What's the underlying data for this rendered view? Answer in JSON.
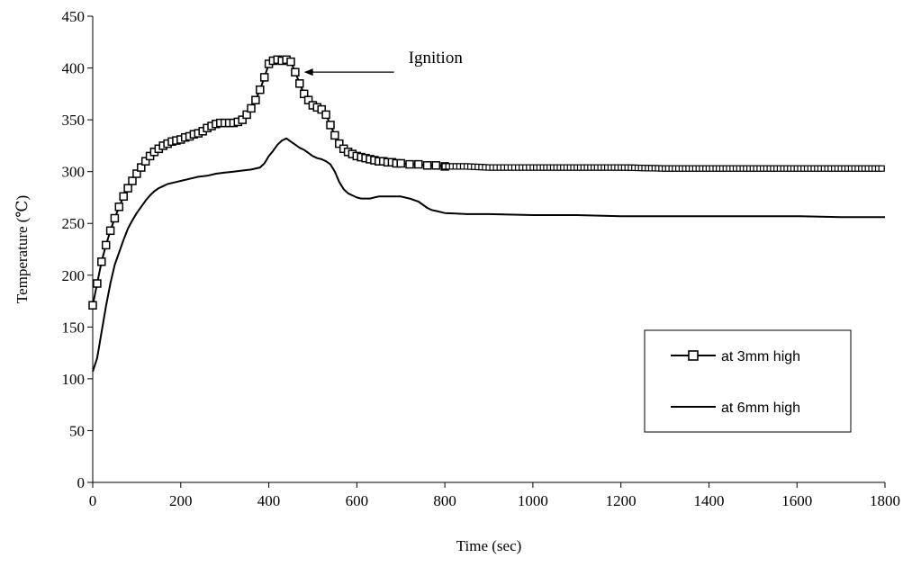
{
  "chart_data": {
    "type": "line",
    "title": "",
    "xlabel": "Time (sec)",
    "ylabel": "Temperature (℃)",
    "xlim": [
      0,
      1800
    ],
    "ylim": [
      0,
      450
    ],
    "xticks": [
      0,
      200,
      400,
      600,
      800,
      1000,
      1200,
      1400,
      1600,
      1800
    ],
    "yticks": [
      0,
      50,
      100,
      150,
      200,
      250,
      300,
      350,
      400,
      450
    ],
    "grid": false,
    "legend_position": "bottom-right",
    "annotation": {
      "text": "Ignition",
      "x": 480,
      "y": 396
    },
    "series": [
      {
        "name": "at 3mm high",
        "color": "#000000",
        "marker": "square",
        "x": [
          0,
          10,
          20,
          30,
          40,
          50,
          60,
          70,
          80,
          90,
          100,
          110,
          120,
          130,
          140,
          150,
          160,
          170,
          180,
          190,
          200,
          210,
          220,
          230,
          240,
          250,
          260,
          270,
          280,
          290,
          300,
          310,
          320,
          330,
          340,
          350,
          360,
          370,
          380,
          390,
          400,
          410,
          420,
          430,
          440,
          450,
          460,
          470,
          480,
          490,
          500,
          510,
          520,
          530,
          540,
          550,
          560,
          570,
          580,
          590,
          600,
          610,
          620,
          630,
          640,
          650,
          660,
          670,
          680,
          690,
          700,
          720,
          740,
          760,
          780,
          800,
          850,
          900,
          950,
          1000,
          1100,
          1200,
          1300,
          1400,
          1500,
          1600,
          1700,
          1800
        ],
        "y": [
          171,
          192,
          213,
          229,
          243,
          255,
          266,
          276,
          284,
          291,
          298,
          304,
          310,
          315,
          319,
          322,
          325,
          327,
          329,
          330,
          331,
          333,
          334,
          336,
          337,
          339,
          342,
          344,
          346,
          347,
          347,
          347,
          347,
          348,
          350,
          355,
          361,
          369,
          379,
          391,
          404,
          407,
          408,
          407,
          408,
          406,
          396,
          385,
          375,
          369,
          364,
          362,
          360,
          355,
          345,
          335,
          327,
          322,
          319,
          317,
          315,
          314,
          313,
          312,
          311,
          310,
          310,
          309,
          309,
          308,
          308,
          307,
          307,
          306,
          306,
          305,
          305,
          304,
          304,
          304,
          304,
          304,
          303,
          303,
          303,
          303,
          303,
          303
        ]
      },
      {
        "name": "at 6mm high",
        "color": "#000000",
        "marker": "none",
        "x": [
          0,
          10,
          20,
          30,
          40,
          50,
          60,
          70,
          80,
          90,
          100,
          110,
          120,
          130,
          140,
          150,
          160,
          170,
          180,
          190,
          200,
          220,
          240,
          260,
          280,
          300,
          320,
          340,
          360,
          380,
          390,
          400,
          410,
          420,
          430,
          440,
          450,
          460,
          470,
          480,
          490,
          500,
          510,
          520,
          530,
          540,
          550,
          560,
          570,
          580,
          590,
          600,
          610,
          620,
          630,
          640,
          650,
          660,
          680,
          700,
          720,
          740,
          750,
          760,
          770,
          780,
          800,
          850,
          900,
          1000,
          1100,
          1200,
          1300,
          1400,
          1500,
          1600,
          1700,
          1800
        ],
        "y": [
          107,
          120,
          145,
          170,
          192,
          210,
          222,
          234,
          245,
          253,
          260,
          266,
          272,
          277,
          281,
          284,
          286,
          288,
          289,
          290,
          291,
          293,
          295,
          296,
          298,
          299,
          300,
          301,
          302,
          304,
          308,
          315,
          320,
          326,
          330,
          332,
          329,
          326,
          323,
          321,
          318,
          315,
          313,
          312,
          310,
          307,
          300,
          290,
          283,
          279,
          277,
          275,
          274,
          274,
          274,
          275,
          276,
          276,
          276,
          276,
          274,
          271,
          268,
          265,
          263,
          262,
          260,
          259,
          259,
          258,
          258,
          257,
          257,
          257,
          257,
          257,
          256,
          256
        ]
      }
    ]
  }
}
